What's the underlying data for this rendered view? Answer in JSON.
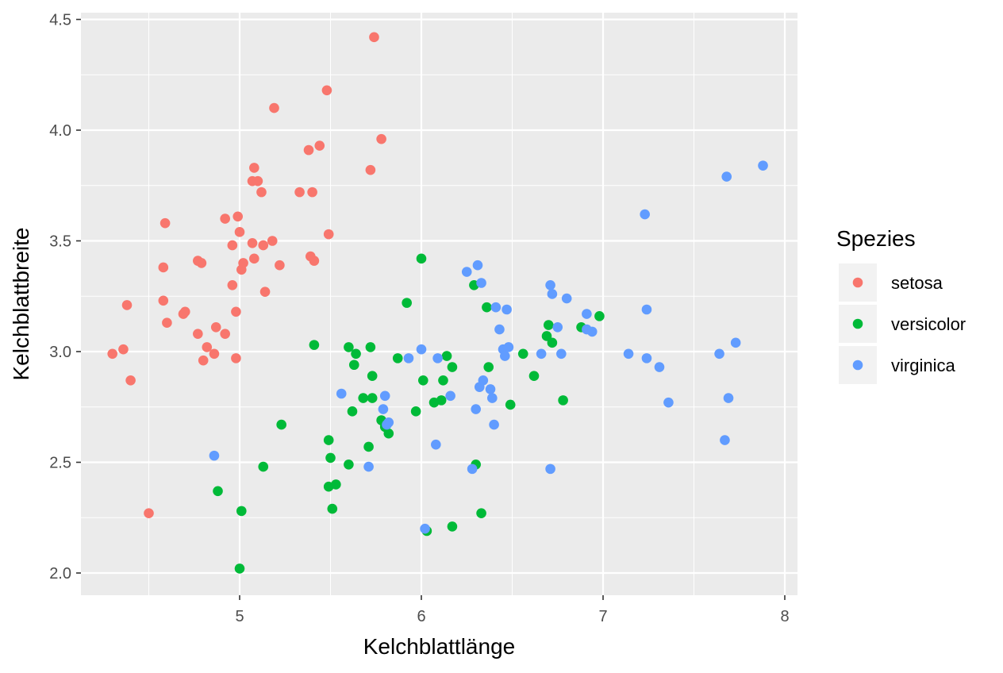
{
  "chart_data": {
    "type": "scatter",
    "title": "",
    "xlabel": "Kelchblattlänge",
    "ylabel": "Kelchblattbreite",
    "xlim": [
      4.2,
      8.05
    ],
    "ylim": [
      1.9,
      4.55
    ],
    "x_ticks": [
      5,
      6,
      7,
      8
    ],
    "x_tick_labels": [
      "5",
      "6",
      "7",
      "8"
    ],
    "y_ticks": [
      2.0,
      2.5,
      3.0,
      3.5,
      4.0,
      4.5
    ],
    "y_tick_labels": [
      "2.0",
      "2.5",
      "3.0",
      "3.5",
      "4.0",
      "4.5"
    ],
    "grid": true,
    "legend": {
      "title": "Spezies",
      "placement": "right",
      "entries": [
        "setosa",
        "versicolor",
        "virginica"
      ]
    },
    "series": [
      {
        "name": "setosa",
        "color": "#F8766D",
        "points": [
          [
            4.3,
            2.99
          ],
          [
            4.36,
            3.01
          ],
          [
            4.38,
            3.21
          ],
          [
            4.4,
            2.87
          ],
          [
            4.5,
            2.27
          ],
          [
            4.58,
            3.38
          ],
          [
            4.58,
            3.23
          ],
          [
            4.59,
            3.58
          ],
          [
            4.6,
            3.13
          ],
          [
            4.69,
            3.17
          ],
          [
            4.7,
            3.18
          ],
          [
            4.77,
            3.08
          ],
          [
            4.77,
            3.41
          ],
          [
            4.79,
            3.4
          ],
          [
            4.8,
            2.96
          ],
          [
            4.82,
            3.02
          ],
          [
            4.86,
            2.99
          ],
          [
            4.87,
            3.11
          ],
          [
            4.92,
            3.6
          ],
          [
            4.92,
            3.08
          ],
          [
            4.96,
            3.48
          ],
          [
            4.96,
            3.3
          ],
          [
            4.98,
            3.18
          ],
          [
            4.98,
            2.97
          ],
          [
            4.99,
            3.61
          ],
          [
            5.0,
            3.54
          ],
          [
            5.01,
            3.37
          ],
          [
            5.02,
            3.4
          ],
          [
            5.07,
            3.49
          ],
          [
            5.07,
            3.77
          ],
          [
            5.08,
            3.42
          ],
          [
            5.08,
            3.83
          ],
          [
            5.1,
            3.77
          ],
          [
            5.12,
            3.72
          ],
          [
            5.13,
            3.48
          ],
          [
            5.14,
            3.27
          ],
          [
            5.18,
            3.5
          ],
          [
            5.19,
            4.1
          ],
          [
            5.22,
            3.39
          ],
          [
            5.33,
            3.72
          ],
          [
            5.38,
            3.91
          ],
          [
            5.39,
            3.43
          ],
          [
            5.4,
            3.72
          ],
          [
            5.41,
            3.41
          ],
          [
            5.44,
            3.93
          ],
          [
            5.48,
            4.18
          ],
          [
            5.49,
            3.53
          ],
          [
            5.72,
            3.82
          ],
          [
            5.74,
            4.42
          ],
          [
            5.78,
            3.96
          ]
        ]
      },
      {
        "name": "versicolor",
        "color": "#00BA38",
        "points": [
          [
            4.88,
            2.37
          ],
          [
            5.0,
            2.02
          ],
          [
            5.01,
            2.28
          ],
          [
            5.13,
            2.48
          ],
          [
            5.23,
            2.67
          ],
          [
            5.41,
            3.03
          ],
          [
            5.49,
            2.6
          ],
          [
            5.49,
            2.39
          ],
          [
            5.5,
            2.52
          ],
          [
            5.51,
            2.29
          ],
          [
            5.53,
            2.4
          ],
          [
            5.6,
            3.02
          ],
          [
            5.6,
            2.49
          ],
          [
            5.62,
            2.73
          ],
          [
            5.63,
            2.94
          ],
          [
            5.64,
            2.99
          ],
          [
            5.68,
            2.79
          ],
          [
            5.71,
            2.57
          ],
          [
            5.72,
            3.02
          ],
          [
            5.73,
            2.89
          ],
          [
            5.73,
            2.79
          ],
          [
            5.78,
            2.69
          ],
          [
            5.8,
            2.66
          ],
          [
            5.82,
            2.63
          ],
          [
            5.87,
            2.97
          ],
          [
            5.92,
            3.22
          ],
          [
            5.97,
            2.73
          ],
          [
            6.0,
            3.42
          ],
          [
            6.01,
            2.87
          ],
          [
            6.03,
            2.19
          ],
          [
            6.07,
            2.77
          ],
          [
            6.11,
            2.78
          ],
          [
            6.12,
            2.87
          ],
          [
            6.14,
            2.98
          ],
          [
            6.17,
            2.93
          ],
          [
            6.17,
            2.21
          ],
          [
            6.29,
            3.3
          ],
          [
            6.3,
            2.49
          ],
          [
            6.33,
            2.27
          ],
          [
            6.36,
            3.2
          ],
          [
            6.37,
            2.93
          ],
          [
            6.49,
            2.76
          ],
          [
            6.56,
            2.99
          ],
          [
            6.62,
            2.89
          ],
          [
            6.69,
            3.07
          ],
          [
            6.7,
            3.12
          ],
          [
            6.72,
            3.04
          ],
          [
            6.78,
            2.78
          ],
          [
            6.88,
            3.11
          ],
          [
            6.98,
            3.16
          ]
        ]
      },
      {
        "name": "virginica",
        "color": "#619CFF",
        "points": [
          [
            4.86,
            2.53
          ],
          [
            5.56,
            2.81
          ],
          [
            5.71,
            2.48
          ],
          [
            5.79,
            2.74
          ],
          [
            5.8,
            2.8
          ],
          [
            5.81,
            2.67
          ],
          [
            5.82,
            2.68
          ],
          [
            5.93,
            2.97
          ],
          [
            6.0,
            3.01
          ],
          [
            6.02,
            2.2
          ],
          [
            6.08,
            2.58
          ],
          [
            6.09,
            2.97
          ],
          [
            6.16,
            2.8
          ],
          [
            6.25,
            3.36
          ],
          [
            6.28,
            2.47
          ],
          [
            6.3,
            2.74
          ],
          [
            6.31,
            3.39
          ],
          [
            6.32,
            2.84
          ],
          [
            6.33,
            3.31
          ],
          [
            6.34,
            2.87
          ],
          [
            6.38,
            2.83
          ],
          [
            6.39,
            2.79
          ],
          [
            6.4,
            2.67
          ],
          [
            6.41,
            3.2
          ],
          [
            6.43,
            3.1
          ],
          [
            6.45,
            3.01
          ],
          [
            6.46,
            2.98
          ],
          [
            6.47,
            3.19
          ],
          [
            6.48,
            3.02
          ],
          [
            6.66,
            2.99
          ],
          [
            6.71,
            3.3
          ],
          [
            6.71,
            2.47
          ],
          [
            6.72,
            3.26
          ],
          [
            6.75,
            3.11
          ],
          [
            6.77,
            2.99
          ],
          [
            6.8,
            3.24
          ],
          [
            6.91,
            3.17
          ],
          [
            6.91,
            3.1
          ],
          [
            6.94,
            3.09
          ],
          [
            7.14,
            2.99
          ],
          [
            7.23,
            3.62
          ],
          [
            7.24,
            3.19
          ],
          [
            7.24,
            2.97
          ],
          [
            7.31,
            2.93
          ],
          [
            7.36,
            2.77
          ],
          [
            7.64,
            2.99
          ],
          [
            7.67,
            2.6
          ],
          [
            7.68,
            3.79
          ],
          [
            7.69,
            2.79
          ],
          [
            7.73,
            3.04
          ],
          [
            7.88,
            3.84
          ]
        ]
      }
    ]
  }
}
